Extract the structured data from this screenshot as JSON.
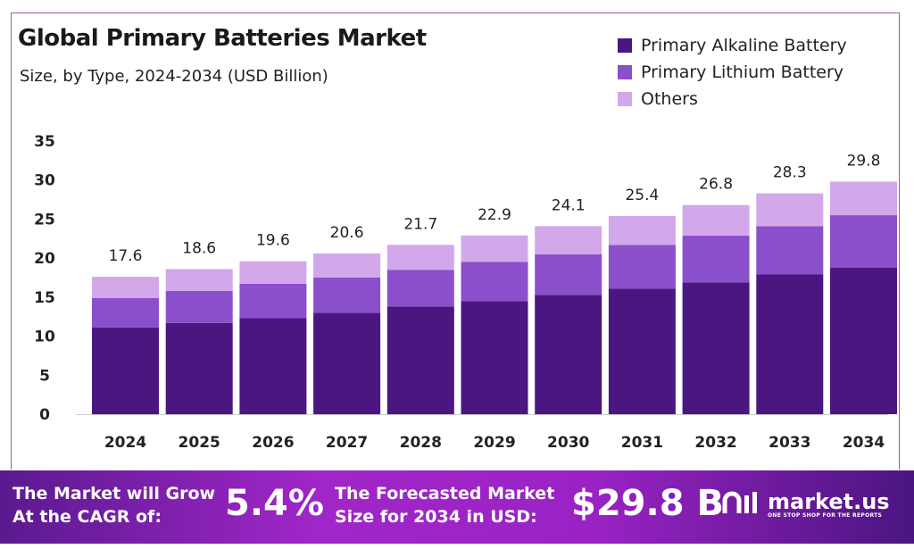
{
  "chart_data": {
    "type": "bar",
    "stacked": true,
    "title": "Global Primary Batteries Market",
    "subtitle": "Size, by Type, 2024-2034 (USD Billion)",
    "categories": [
      "2024",
      "2025",
      "2026",
      "2027",
      "2028",
      "2029",
      "2030",
      "2031",
      "2032",
      "2033",
      "2034"
    ],
    "series": [
      {
        "name": "Primary Alkaline Battery",
        "color": "#4b1680",
        "values": [
          11.1,
          11.7,
          12.3,
          13.0,
          13.8,
          14.5,
          15.3,
          16.1,
          16.9,
          17.9,
          18.8
        ]
      },
      {
        "name": "Primary Lithium Battery",
        "color": "#8b4fcc",
        "values": [
          3.8,
          4.1,
          4.4,
          4.5,
          4.7,
          5.0,
          5.2,
          5.6,
          6.0,
          6.2,
          6.7
        ]
      },
      {
        "name": "Others",
        "color": "#d2a8ea",
        "values": [
          2.7,
          2.8,
          2.9,
          3.1,
          3.2,
          3.4,
          3.6,
          3.7,
          3.9,
          4.2,
          4.3
        ]
      }
    ],
    "totals": [
      "17.6",
      "18.6",
      "19.6",
      "20.6",
      "21.7",
      "22.9",
      "24.1",
      "25.4",
      "26.8",
      "28.3",
      "29.8"
    ],
    "yticks": [
      "0",
      "5",
      "10",
      "15",
      "20",
      "25",
      "30",
      "35"
    ],
    "ylim": [
      0,
      35
    ],
    "grid": false,
    "legend": "top-right"
  },
  "banner": {
    "cagr_label_1": "The Market will Grow",
    "cagr_label_2": "At the CAGR of:",
    "cagr_value": "5.4%",
    "forecast_label_1": "The Forecasted Market",
    "forecast_label_2": "Size for 2034 in USD:",
    "forecast_value": "$29.8 B",
    "logo_text": "market.us",
    "logo_tagline": "ONE STOP SHOP FOR THE REPORTS"
  }
}
